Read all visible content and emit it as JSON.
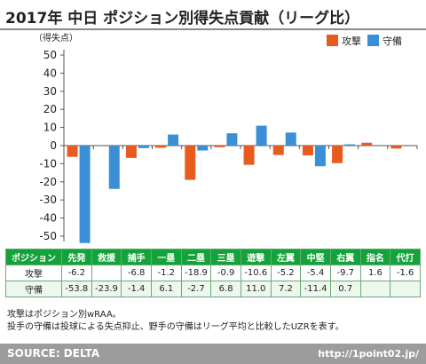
{
  "header": {
    "title": "2017年 中日 ポジション別得失点貢献（リーグ比）"
  },
  "chart_data": {
    "type": "bar",
    "ylabel": "（得失点）",
    "ylim": [
      -55,
      55
    ],
    "yticks": [
      50,
      40,
      30,
      20,
      10,
      0,
      -10,
      -20,
      -30,
      -40,
      -50
    ],
    "categories": [
      "先発",
      "救援",
      "捕手",
      "一塁",
      "二塁",
      "三塁",
      "遊撃",
      "左翼",
      "中堅",
      "右翼",
      "指名",
      "代打"
    ],
    "series": [
      {
        "name": "攻撃",
        "color": "#e85b1e",
        "values": [
          -6.2,
          null,
          -6.8,
          -1.2,
          -18.9,
          -0.9,
          -10.6,
          -5.2,
          -5.4,
          -9.7,
          1.6,
          -1.6
        ]
      },
      {
        "name": "守備",
        "color": "#3a8fd6",
        "values": [
          -53.8,
          -23.9,
          -1.4,
          6.1,
          -2.7,
          6.8,
          11.0,
          7.2,
          -11.4,
          0.7,
          null,
          null
        ]
      }
    ],
    "legend_position": "top-right",
    "grid": false
  },
  "table": {
    "header_label": "ポジション",
    "columns": [
      "先発",
      "救援",
      "捕手",
      "一塁",
      "二塁",
      "三塁",
      "遊撃",
      "左翼",
      "中堅",
      "右翼",
      "指名",
      "代打"
    ],
    "rows": [
      {
        "label": "攻撃",
        "values": [
          "-6.2",
          "",
          "-6.8",
          "-1.2",
          "-18.9",
          "-0.9",
          "-10.6",
          "-5.2",
          "-5.4",
          "-9.7",
          "1.6",
          "-1.6"
        ]
      },
      {
        "label": "守備",
        "values": [
          "-53.8",
          "-23.9",
          "-1.4",
          "6.1",
          "-2.7",
          "6.8",
          "11.0",
          "7.2",
          "-11.4",
          "0.7",
          "",
          ""
        ]
      }
    ]
  },
  "notes": [
    "攻撃はポジション別wRAA。",
    "投手の守備は投球による失点抑止、野手の守備はリーグ平均と比較したUZRを表す。"
  ],
  "footer": {
    "source": "SOURCE: DELTA",
    "url": "http://1point02.jp/"
  }
}
